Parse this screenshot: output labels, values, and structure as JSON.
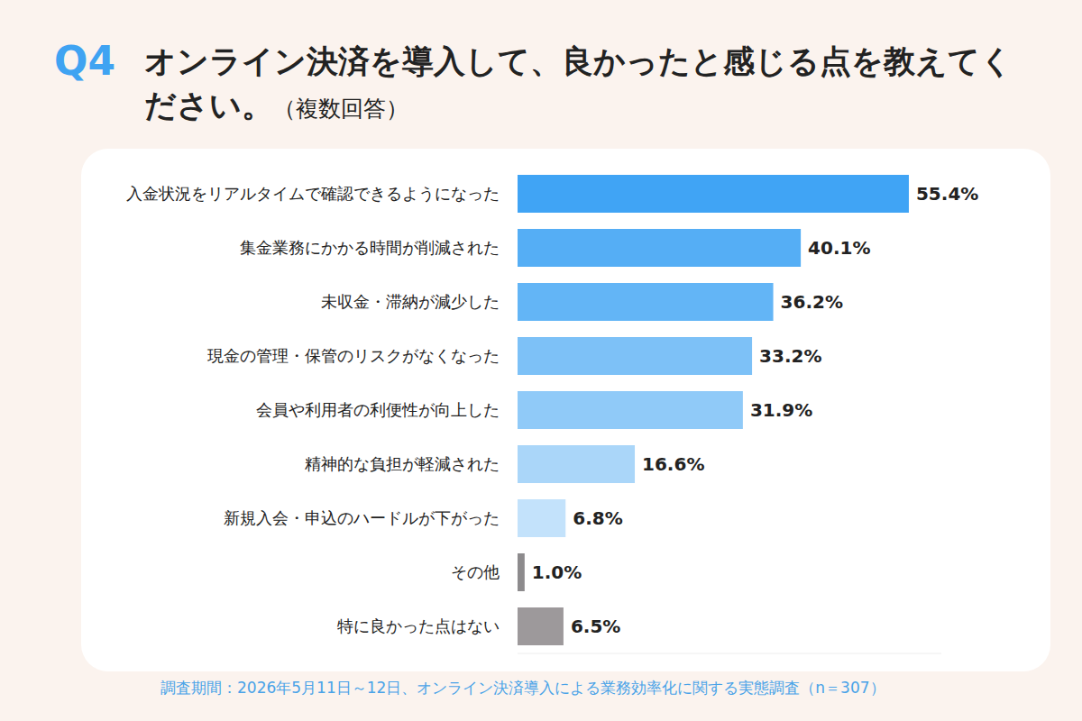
{
  "chart_data": {
    "type": "bar",
    "orientation": "horizontal",
    "label": "Q4",
    "title": "オンライン決済を導入して、良かったと感じる点を教えてください。",
    "subtitle": "（複数回答）",
    "note": "調査期間：2026年5月11日～12日、オンライン決済導入による業務効率化に関する実態調査（n＝307）",
    "categories": [
      "入金状況をリアルタイムで確認できるようになった",
      "集金業務にかかる時間が削減された",
      "未収金・滞納が減少した",
      "現金の管理・保管のリスクがなくなった",
      "会員や利用者の利便性が向上した",
      "精神的な負担が軽減された",
      "新規入会・申込のハードルが下がった",
      "その他",
      "特に良かった点はない"
    ],
    "values": [
      55.4,
      40.1,
      36.2,
      33.2,
      31.9,
      16.6,
      6.8,
      1.0,
      6.5
    ],
    "value_labels": [
      "55.4%",
      "40.1%",
      "36.2%",
      "33.2%",
      "31.9%",
      "16.6%",
      "6.8%",
      "1.0%",
      "6.5%"
    ],
    "colors": [
      "#40a4f5",
      "#55aef5",
      "#63b5f6",
      "#7dc1f7",
      "#90caf8",
      "#aad6f9",
      "#c3e2fb",
      "#8d8b8d",
      "#9d999b"
    ],
    "xlim": [
      0,
      60
    ],
    "data_labels": true,
    "tick_labels": "y",
    "grid": false
  }
}
